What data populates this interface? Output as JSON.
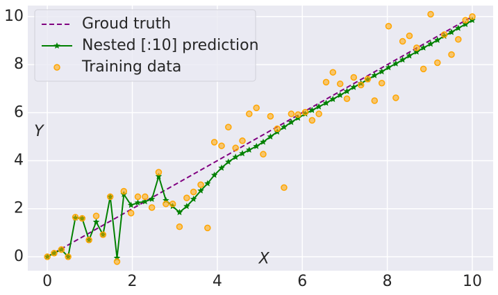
{
  "chart_data": {
    "type": "line",
    "xlim": [
      -0.46,
      10.49
    ],
    "ylim": [
      -0.58,
      10.46
    ],
    "xticks": [
      0,
      2,
      4,
      6,
      8,
      10
    ],
    "yticks": [
      0,
      2,
      4,
      6,
      8,
      10
    ],
    "grid": true,
    "legend": "upper left",
    "x": [
      0,
      0.16,
      0.33,
      0.49,
      0.66,
      0.82,
      0.98,
      1.15,
      1.31,
      1.48,
      1.64,
      1.8,
      1.97,
      2.13,
      2.3,
      2.46,
      2.62,
      2.79,
      2.95,
      3.11,
      3.28,
      3.44,
      3.61,
      3.77,
      3.93,
      4.1,
      4.26,
      4.43,
      4.59,
      4.75,
      4.92,
      5.08,
      5.25,
      5.41,
      5.57,
      5.74,
      5.9,
      6.07,
      6.23,
      6.39,
      6.56,
      6.72,
      6.89,
      7.05,
      7.21,
      7.38,
      7.54,
      7.7,
      7.87,
      8.03,
      8.2,
      8.36,
      8.52,
      8.69,
      8.85,
      9.02,
      9.18,
      9.34,
      9.51,
      9.67,
      9.84,
      10
    ],
    "annotations": [
      {
        "text": "X",
        "x": 5.1,
        "y": -0.1
      },
      {
        "text": "Y",
        "x": -0.2,
        "y": 5.2
      }
    ],
    "series": [
      {
        "name": "Groud truth",
        "color": "#800080",
        "linestyle": "dashed",
        "marker": "none",
        "x": [
          0,
          10
        ],
        "values": [
          0,
          10
        ]
      },
      {
        "name": "Nested [:10] prediction",
        "color": "#008000",
        "linestyle": "solid",
        "marker": "star",
        "values": [
          0,
          0.15,
          0.3,
          0,
          1.62,
          1.6,
          0.7,
          1.45,
          0.92,
          2.5,
          -0.05,
          2.6,
          2.15,
          2.25,
          2.3,
          2.4,
          3.35,
          2.35,
          2.1,
          1.85,
          2.1,
          2.4,
          2.75,
          3.05,
          3.4,
          3.7,
          3.95,
          4.15,
          4.3,
          4.45,
          4.6,
          4.78,
          5.0,
          5.2,
          5.4,
          5.6,
          5.78,
          5.95,
          6.1,
          6.25,
          6.4,
          6.56,
          6.73,
          6.89,
          7.06,
          7.22,
          7.38,
          7.55,
          7.71,
          7.88,
          8.04,
          8.2,
          8.37,
          8.53,
          8.7,
          8.86,
          9.02,
          9.19,
          9.35,
          9.52,
          9.68,
          9.85
        ]
      },
      {
        "name": "Training data",
        "color": "#ffa500",
        "linestyle": "none",
        "marker": "circle",
        "values": [
          0,
          0.15,
          0.3,
          0,
          1.65,
          1.6,
          0.7,
          1.7,
          0.92,
          2.5,
          -0.2,
          2.73,
          1.82,
          2.5,
          2.5,
          2.05,
          3.52,
          2.2,
          2.2,
          1.25,
          2.45,
          2.7,
          3.0,
          1.2,
          4.77,
          4.62,
          5.4,
          4.53,
          4.83,
          5.95,
          6.2,
          4.27,
          5.85,
          5.33,
          2.88,
          5.95,
          5.92,
          6.02,
          5.68,
          5.95,
          7.27,
          7.68,
          7.2,
          6.58,
          7.47,
          7.15,
          7.4,
          6.5,
          7.23,
          9.6,
          6.62,
          8.97,
          9.2,
          8.7,
          7.82,
          10.1,
          8.08,
          9.25,
          8.42,
          9.05,
          9.85,
          10.0
        ]
      }
    ]
  }
}
